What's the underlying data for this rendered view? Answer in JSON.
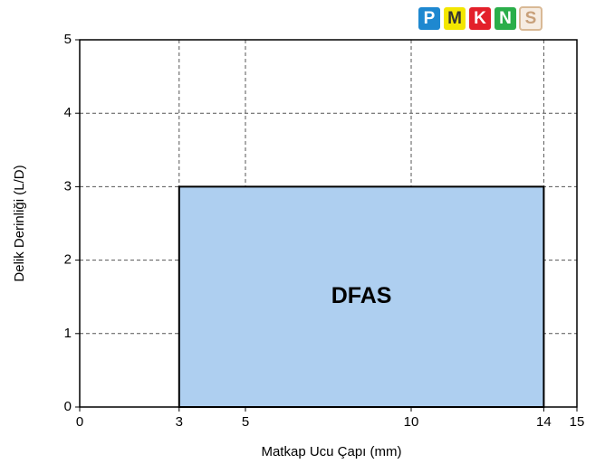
{
  "chart_data": {
    "type": "area",
    "x_label": "Matkap Ucu Çapı (mm)",
    "y_label": "Delik Derinliği (L/D)",
    "series": [
      {
        "name": "DFAS",
        "color": "#aecff0",
        "x": [
          3,
          14
        ],
        "values": [
          3,
          3
        ]
      }
    ],
    "xlim": [
      0,
      15
    ],
    "xticks": [
      0,
      3,
      5,
      10,
      14,
      15
    ],
    "ylim": [
      0,
      5
    ],
    "yticks": [
      0,
      1,
      2,
      3,
      4,
      5
    ],
    "grid": true,
    "badges": [
      {
        "label": "P",
        "color": "#1e88d0",
        "text_color": "#ffffff"
      },
      {
        "label": "M",
        "color": "#f3e600",
        "text_color": "#333333"
      },
      {
        "label": "K",
        "color": "#e3202a",
        "text_color": "#ffffff"
      },
      {
        "label": "N",
        "color": "#2aae4a",
        "text_color": "#ffffff"
      },
      {
        "label": "S",
        "color": "#f6ece2",
        "text_color": "#c8a07a"
      }
    ]
  }
}
